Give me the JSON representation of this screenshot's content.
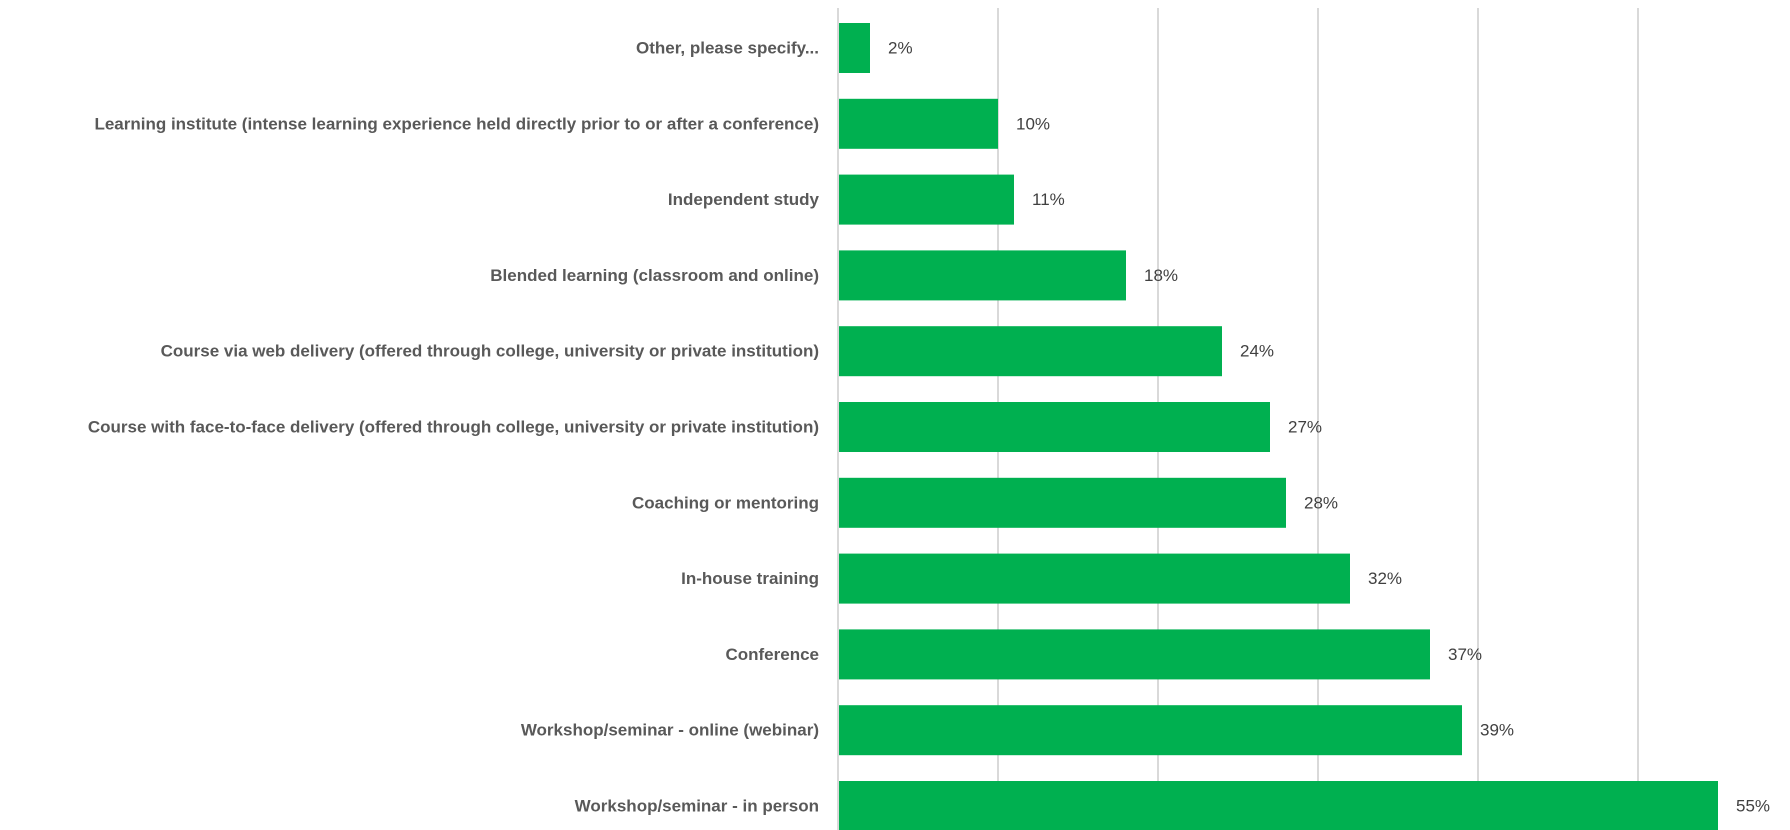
{
  "chart_data": {
    "type": "bar",
    "orientation": "horizontal",
    "categories": [
      "Other, please specify...",
      "Learning institute (intense learning experience held directly prior to or after a conference)",
      "Independent study",
      "Blended learning (classroom and online)",
      "Course via web delivery (offered through college, university or private institution)",
      "Course with face-to-face delivery (offered through college, university or private institution)",
      "Coaching or mentoring",
      "In-house training",
      "Conference",
      "Workshop/seminar - online (webinar)",
      "Workshop/seminar - in person"
    ],
    "values": [
      2,
      10,
      11,
      18,
      24,
      27,
      28,
      32,
      37,
      39,
      55
    ],
    "value_labels": [
      "2%",
      "10%",
      "11%",
      "18%",
      "24%",
      "27%",
      "28%",
      "32%",
      "37%",
      "39%",
      "55%"
    ],
    "xlim": [
      0,
      60
    ],
    "x_gridlines": [
      10,
      20,
      30,
      40,
      50
    ],
    "grid": true,
    "bar_color": "#00B050",
    "gridline_color": "#D9D9D9",
    "label_color": "#595959",
    "value_label_color": "#404040"
  }
}
